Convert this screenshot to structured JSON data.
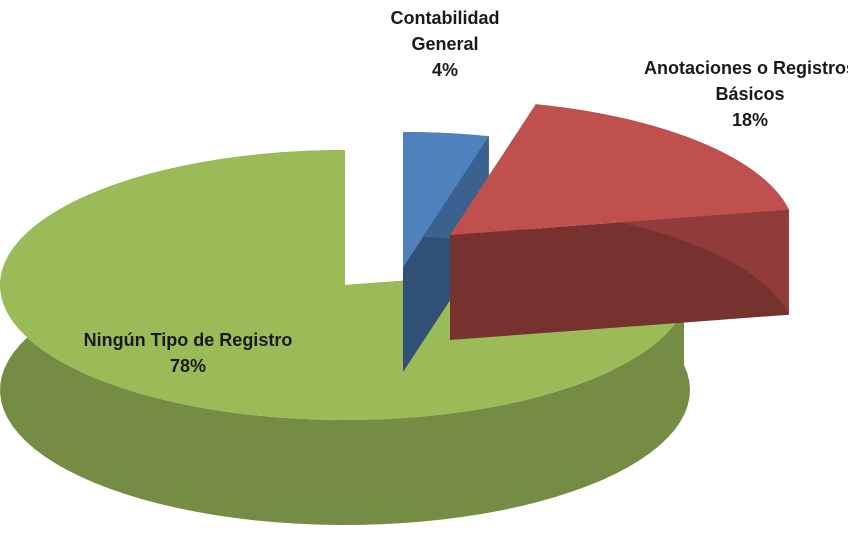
{
  "chart_data": {
    "type": "pie",
    "categories": [
      "Contabilidad General",
      "Anotaciones o Registros Básicos",
      "Ningún Tipo de Registro"
    ],
    "values": [
      4,
      18,
      78
    ],
    "value_labels": [
      "4%",
      "18%",
      "78%"
    ],
    "colors": [
      "#4f81bd",
      "#c0504d",
      "#9bbb59"
    ]
  }
}
